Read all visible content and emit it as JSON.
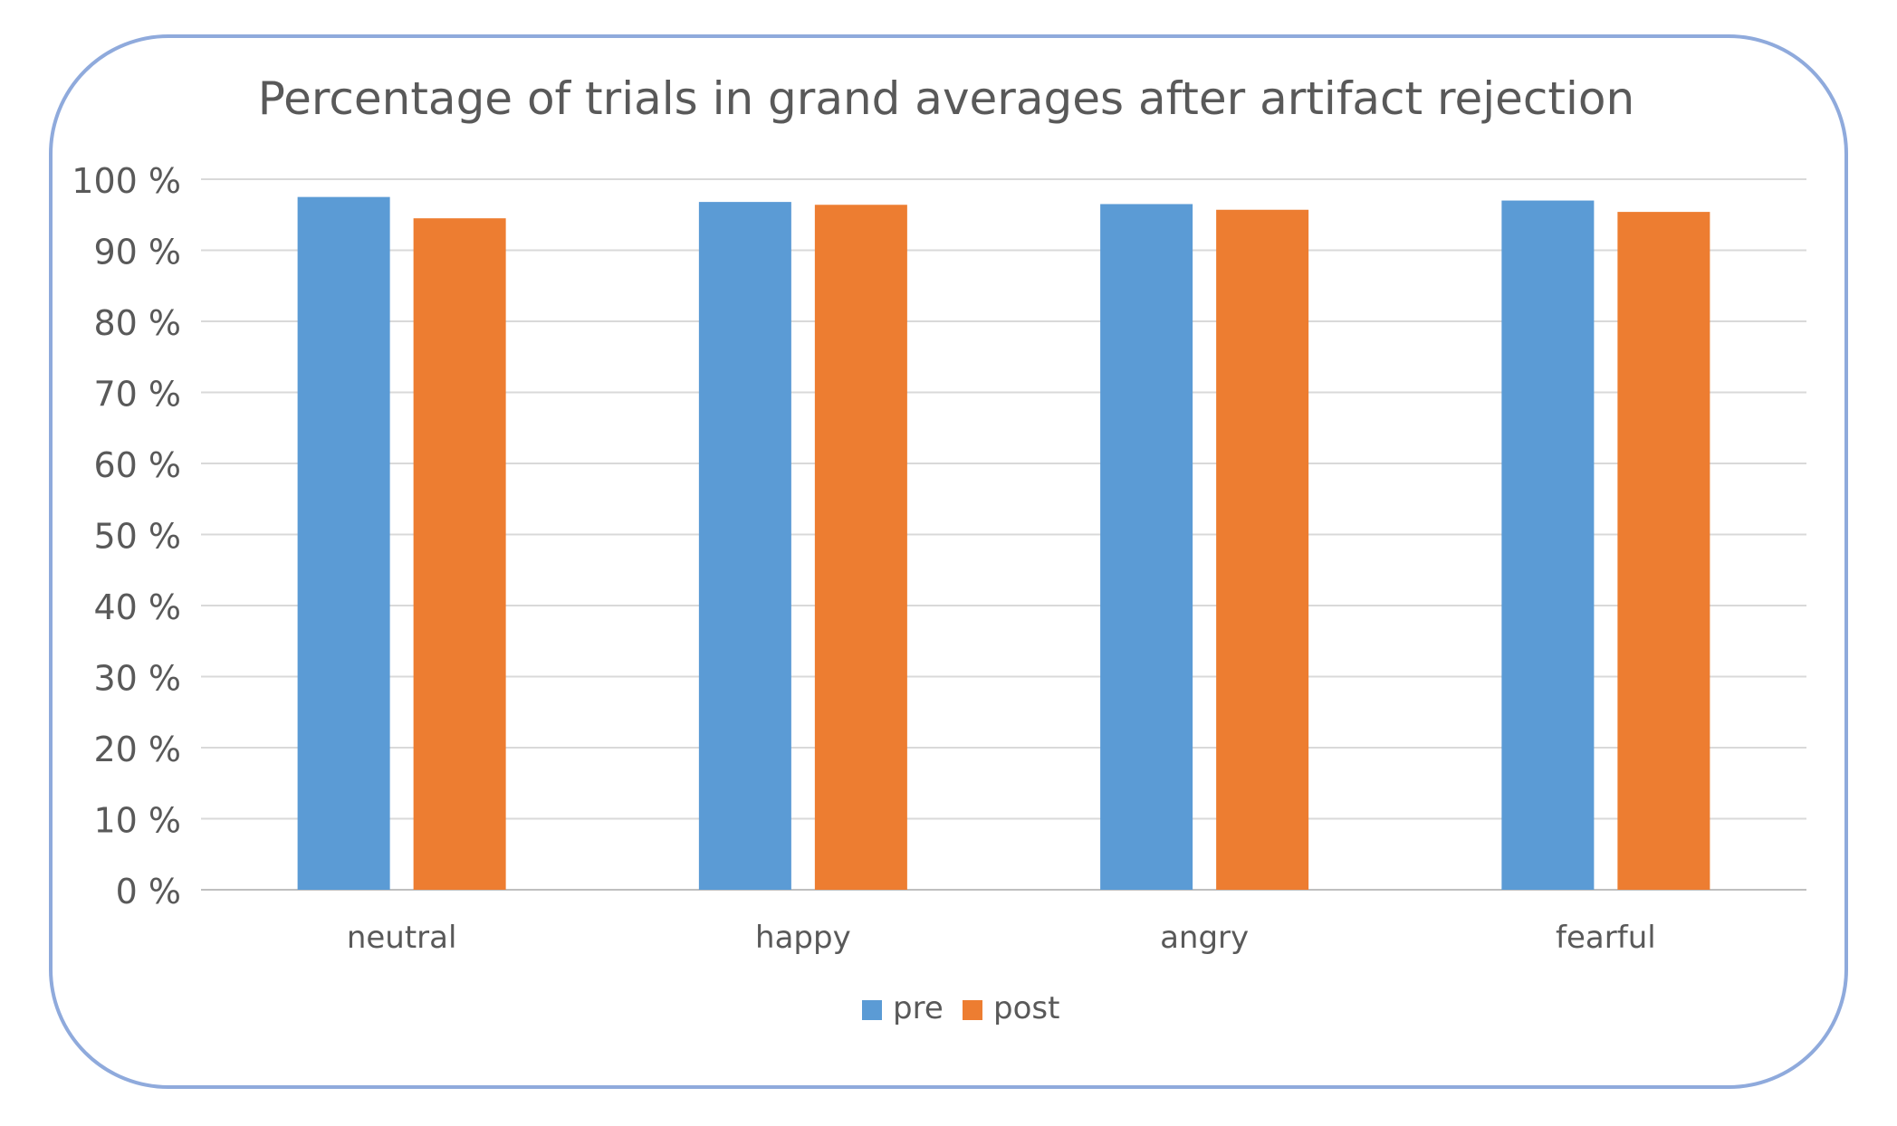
{
  "chart_data": {
    "type": "bar",
    "title": "Percentage of trials in grand averages after artifact rejection",
    "xlabel": "",
    "ylabel": "",
    "categories": [
      "neutral",
      "happy",
      "angry",
      "fearful"
    ],
    "series": [
      {
        "name": "pre",
        "values": [
          97.5,
          96.8,
          96.5,
          97.0
        ]
      },
      {
        "name": "post",
        "values": [
          94.5,
          96.4,
          95.7,
          95.4
        ]
      }
    ],
    "ylim": [
      0,
      100
    ],
    "y_ticks": [
      "0 %",
      "10 %",
      "20 %",
      "30 %",
      "40 %",
      "50 %",
      "60 %",
      "70 %",
      "80 %",
      "90 %",
      "100 %"
    ],
    "grid": true,
    "legend": "bottom-center",
    "colors": {
      "pre": "#5B9BD5",
      "post": "#ED7D31",
      "frame": "#8FAADC",
      "grid": "#D9D9D9",
      "text": "#595959"
    }
  }
}
